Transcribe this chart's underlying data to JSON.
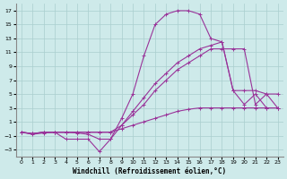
{
  "xlabel": "Windchill (Refroidissement éolien,°C)",
  "xlim": [
    -0.5,
    23.5
  ],
  "ylim": [
    -4,
    18
  ],
  "yticks": [
    -3,
    -1,
    1,
    3,
    5,
    7,
    9,
    11,
    13,
    15,
    17
  ],
  "xticks": [
    0,
    1,
    2,
    3,
    4,
    5,
    6,
    7,
    8,
    9,
    10,
    11,
    12,
    13,
    14,
    15,
    16,
    17,
    18,
    19,
    20,
    21,
    22,
    23
  ],
  "background_color": "#ceeaea",
  "grid_color": "#aacece",
  "line_color": "#993399",
  "line1_x": [
    0,
    1,
    2,
    3,
    4,
    5,
    6,
    7,
    8,
    9,
    10,
    11,
    12,
    13,
    14,
    15,
    16,
    17,
    18,
    19,
    20,
    21,
    22,
    23
  ],
  "line1_y": [
    -0.5,
    -0.7,
    -0.5,
    -0.5,
    -0.5,
    -0.5,
    -0.5,
    -0.5,
    -0.5,
    0.0,
    0.5,
    1.0,
    1.5,
    2.0,
    2.5,
    2.8,
    3.0,
    3.0,
    3.0,
    3.0,
    3.0,
    3.0,
    3.0,
    3.0
  ],
  "line2_x": [
    0,
    1,
    2,
    3,
    4,
    5,
    6,
    7,
    8,
    9,
    10,
    11,
    12,
    13,
    14,
    15,
    16,
    17,
    18,
    19,
    20,
    21,
    22,
    23
  ],
  "line2_y": [
    -0.5,
    -0.7,
    -0.5,
    -0.5,
    -0.5,
    -0.6,
    -0.8,
    -1.5,
    -1.5,
    0.5,
    2.5,
    4.5,
    6.5,
    8.0,
    9.5,
    10.5,
    11.5,
    12.0,
    12.5,
    5.5,
    5.5,
    5.5,
    5.0,
    5.0
  ],
  "line3_x": [
    0,
    1,
    2,
    3,
    4,
    5,
    6,
    7,
    8,
    9,
    10,
    11,
    12,
    13,
    14,
    15,
    16,
    17,
    18,
    19,
    20,
    21,
    22,
    23
  ],
  "line3_y": [
    -0.5,
    -0.8,
    -0.6,
    -0.5,
    -1.5,
    -1.5,
    -1.5,
    -3.3,
    -1.5,
    1.5,
    5.0,
    10.5,
    15.0,
    16.5,
    17.0,
    17.0,
    16.5,
    13.0,
    12.5,
    5.5,
    3.5,
    5.0,
    3.0,
    3.0
  ],
  "line4_x": [
    0,
    1,
    2,
    3,
    4,
    5,
    6,
    7,
    8,
    9,
    10,
    11,
    12,
    13,
    14,
    15,
    16,
    17,
    18,
    19,
    20,
    21,
    22,
    23
  ],
  "line4_y": [
    -0.5,
    -0.7,
    -0.5,
    -0.5,
    -0.5,
    -0.5,
    -0.5,
    -0.5,
    -0.5,
    0.5,
    2.0,
    3.5,
    5.5,
    7.0,
    8.5,
    9.5,
    10.5,
    11.5,
    11.5,
    11.5,
    11.5,
    3.5,
    5.0,
    3.0
  ]
}
